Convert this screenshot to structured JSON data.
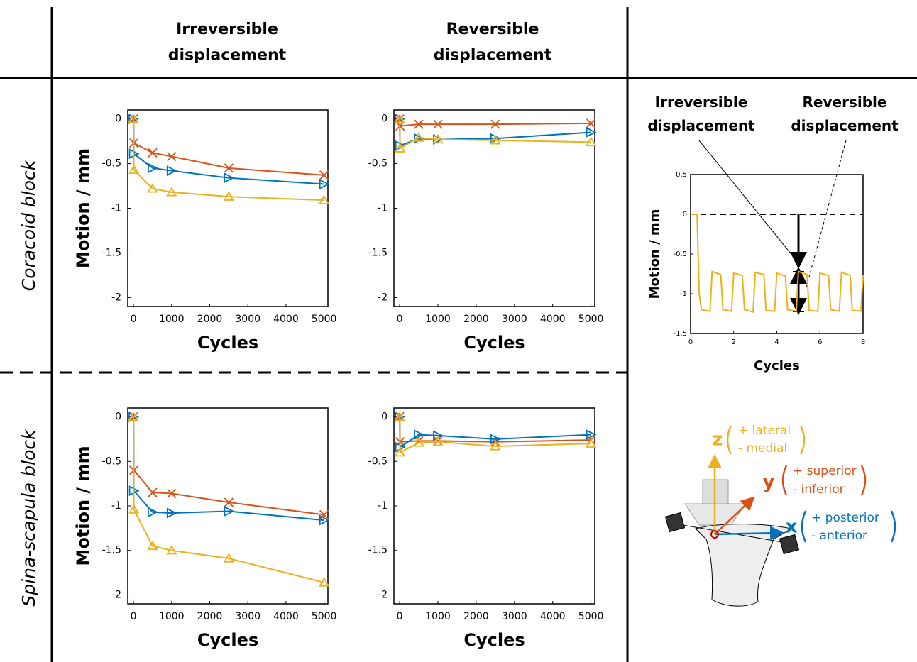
{
  "headers": [
    "Irreversible displacement",
    "Reversible displacement"
  ],
  "row_labels": [
    "Coracoid block",
    "Spina-scapula block"
  ],
  "chart_data": [
    {
      "type": "line",
      "x_label": "Cycles",
      "y_label": "Motion / mm",
      "x": [
        0,
        10,
        500,
        1000,
        2500,
        5000
      ],
      "series": [
        {
          "color": "#d95319",
          "marker": "x",
          "values": [
            0,
            -0.27,
            -0.38,
            -0.42,
            -0.55,
            -0.63
          ]
        },
        {
          "color": "#0072bd",
          "marker": "triangle-right",
          "values": [
            0,
            -0.39,
            -0.55,
            -0.58,
            -0.66,
            -0.73
          ]
        },
        {
          "color": "#edb120",
          "marker": "triangle-up",
          "values": [
            0,
            -0.57,
            -0.78,
            -0.82,
            -0.87,
            -0.91
          ]
        }
      ],
      "xlim": [
        -150,
        5100
      ],
      "ylim": [
        -2.1,
        0.1
      ],
      "xticks": [
        0,
        1000,
        2000,
        3000,
        4000,
        5000
      ],
      "yticks": [
        -2,
        -1.5,
        -1,
        -0.5,
        0
      ]
    },
    {
      "type": "line",
      "x_label": "Cycles",
      "x": [
        0,
        10,
        500,
        1000,
        2500,
        5000
      ],
      "series": [
        {
          "color": "#d95319",
          "marker": "x",
          "values": [
            0,
            -0.08,
            -0.06,
            -0.06,
            -0.06,
            -0.05
          ]
        },
        {
          "color": "#0072bd",
          "marker": "triangle-right",
          "values": [
            0,
            -0.3,
            -0.22,
            -0.23,
            -0.22,
            -0.15
          ]
        },
        {
          "color": "#edb120",
          "marker": "triangle-up",
          "values": [
            0,
            -0.33,
            -0.21,
            -0.23,
            -0.24,
            -0.26
          ]
        }
      ],
      "xlim": [
        -150,
        5100
      ],
      "ylim": [
        -2.1,
        0.1
      ],
      "xticks": [
        0,
        1000,
        2000,
        3000,
        4000,
        5000
      ],
      "yticks": [
        -2,
        -1.5,
        -1,
        -0.5,
        0
      ]
    },
    {
      "type": "line",
      "x_label": "Cycles",
      "y_label": "Motion / mm",
      "x": [
        0,
        10,
        500,
        1000,
        2500,
        5000
      ],
      "series": [
        {
          "color": "#d95319",
          "marker": "x",
          "values": [
            0,
            -0.6,
            -0.85,
            -0.86,
            -0.96,
            -1.1
          ]
        },
        {
          "color": "#0072bd",
          "marker": "triangle-right",
          "values": [
            0,
            -0.83,
            -1.07,
            -1.08,
            -1.06,
            -1.16
          ]
        },
        {
          "color": "#edb120",
          "marker": "triangle-up",
          "values": [
            0,
            -1.04,
            -1.45,
            -1.5,
            -1.59,
            -1.86
          ]
        }
      ],
      "xlim": [
        -150,
        5100
      ],
      "ylim": [
        -2.1,
        0.1
      ],
      "xticks": [
        0,
        1000,
        2000,
        3000,
        4000,
        5000
      ],
      "yticks": [
        -2,
        -1.5,
        -1,
        -0.5,
        0
      ]
    },
    {
      "type": "line",
      "x_label": "Cycles",
      "x": [
        0,
        10,
        500,
        1000,
        2500,
        5000
      ],
      "series": [
        {
          "color": "#d95319",
          "marker": "x",
          "values": [
            0,
            -0.28,
            -0.27,
            -0.27,
            -0.28,
            -0.26
          ]
        },
        {
          "color": "#0072bd",
          "marker": "triangle-right",
          "values": [
            0,
            -0.34,
            -0.2,
            -0.21,
            -0.25,
            -0.2
          ]
        },
        {
          "color": "#edb120",
          "marker": "triangle-up",
          "values": [
            0,
            -0.4,
            -0.29,
            -0.28,
            -0.33,
            -0.3
          ]
        }
      ],
      "xlim": [
        -150,
        5100
      ],
      "ylim": [
        -2.1,
        0.1
      ],
      "xticks": [
        0,
        1000,
        2000,
        3000,
        4000,
        5000
      ],
      "yticks": [
        -2,
        -1.5,
        -1,
        -0.5,
        0
      ]
    },
    {
      "type": "line",
      "x_label": "Cycles",
      "y_label": "Motion / mm",
      "annotations": [
        "Irreversible displacement",
        "Reversible displacement"
      ],
      "x": [
        0,
        0.3,
        0.4,
        0.5,
        0.9,
        1.0,
        1.4,
        1.5,
        1.9,
        2.0,
        2.4,
        2.5,
        2.9,
        3.0,
        3.4,
        3.5,
        3.9,
        4.0,
        4.4,
        4.5,
        4.9,
        5.0,
        5.4,
        5.5,
        5.9,
        6.0,
        6.4,
        6.5,
        6.9,
        7.0,
        7.4,
        7.5,
        7.9,
        8.0
      ],
      "series": [
        {
          "color": "#edb120",
          "values": [
            0,
            0,
            -1.0,
            -1.2,
            -1.22,
            -0.72,
            -0.76,
            -1.2,
            -1.22,
            -0.74,
            -0.77,
            -1.2,
            -1.23,
            -0.73,
            -0.76,
            -1.21,
            -1.22,
            -0.74,
            -0.78,
            -1.2,
            -1.22,
            -0.72,
            -0.76,
            -1.21,
            -1.22,
            -0.74,
            -0.77,
            -1.2,
            -1.22,
            -0.73,
            -0.77,
            -1.21,
            -1.22,
            -0.76
          ]
        }
      ],
      "xlim": [
        0,
        8
      ],
      "ylim": [
        -1.5,
        0.5
      ],
      "xticks": [
        0,
        2,
        4,
        6,
        8
      ],
      "yticks": [
        -1.5,
        -1,
        -0.5,
        0,
        0.5
      ]
    }
  ],
  "diagram": {
    "z": {
      "label": "z",
      "plus": "+ lateral",
      "minus": "- medial"
    },
    "y": {
      "label": "y",
      "plus": "+ superior",
      "minus": "- inferior"
    },
    "x": {
      "label": "x",
      "plus": "+ posterior",
      "minus": "- anterior"
    }
  }
}
